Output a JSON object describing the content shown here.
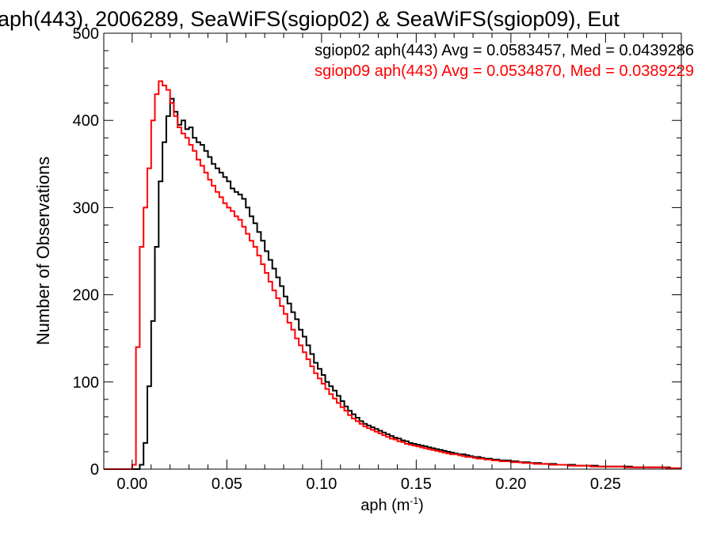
{
  "chart_data": {
    "type": "line",
    "title": "aph(443), 2006289, SeaWiFS(sgiop02) & SeaWiFS(sgiop09), Eut",
    "xlabel": "aph (m",
    "xlabel_sup": "-1",
    "xlabel_close": ")",
    "ylabel": "Number of Observations",
    "xlim": [
      -0.015,
      0.29
    ],
    "ylim": [
      0,
      500
    ],
    "grid": false,
    "step": "histogram",
    "x_ticks": [
      {
        "value": 0.0,
        "label": "0.00"
      },
      {
        "value": 0.05,
        "label": "0.05"
      },
      {
        "value": 0.1,
        "label": "0.10"
      },
      {
        "value": 0.15,
        "label": "0.15"
      },
      {
        "value": 0.2,
        "label": "0.20"
      },
      {
        "value": 0.25,
        "label": "0.25"
      }
    ],
    "y_ticks": [
      {
        "value": 0,
        "label": "0"
      },
      {
        "value": 100,
        "label": "100"
      },
      {
        "value": 200,
        "label": "200"
      },
      {
        "value": 300,
        "label": "300"
      },
      {
        "value": 400,
        "label": "400"
      },
      {
        "value": 500,
        "label": "500"
      }
    ],
    "annotations": [
      {
        "text": "sgiop02 aph(443) Avg = 0.0583457, Med = 0.0439286",
        "color": "#000000"
      },
      {
        "text": "sgiop09 aph(443) Avg = 0.0534870, Med = 0.0389229",
        "color": "#ff0000"
      }
    ],
    "series": [
      {
        "color": "#000000",
        "points": [
          [
            -0.015,
            0
          ],
          [
            0.0,
            0
          ],
          [
            0.002,
            0
          ],
          [
            0.004,
            5
          ],
          [
            0.006,
            30
          ],
          [
            0.008,
            95
          ],
          [
            0.01,
            170
          ],
          [
            0.012,
            255
          ],
          [
            0.014,
            330
          ],
          [
            0.016,
            375
          ],
          [
            0.018,
            405
          ],
          [
            0.02,
            425
          ],
          [
            0.022,
            410
          ],
          [
            0.024,
            395
          ],
          [
            0.026,
            400
          ],
          [
            0.028,
            390
          ],
          [
            0.03,
            392
          ],
          [
            0.032,
            380
          ],
          [
            0.034,
            375
          ],
          [
            0.036,
            372
          ],
          [
            0.038,
            365
          ],
          [
            0.04,
            358
          ],
          [
            0.042,
            350
          ],
          [
            0.044,
            345
          ],
          [
            0.046,
            340
          ],
          [
            0.048,
            335
          ],
          [
            0.05,
            330
          ],
          [
            0.052,
            322
          ],
          [
            0.054,
            318
          ],
          [
            0.056,
            315
          ],
          [
            0.058,
            310
          ],
          [
            0.06,
            300
          ],
          [
            0.062,
            290
          ],
          [
            0.064,
            282
          ],
          [
            0.066,
            272
          ],
          [
            0.068,
            262
          ],
          [
            0.07,
            250
          ],
          [
            0.072,
            240
          ],
          [
            0.074,
            230
          ],
          [
            0.076,
            220
          ],
          [
            0.078,
            210
          ],
          [
            0.08,
            198
          ],
          [
            0.082,
            190
          ],
          [
            0.084,
            180
          ],
          [
            0.086,
            172
          ],
          [
            0.088,
            160
          ],
          [
            0.09,
            152
          ],
          [
            0.092,
            142
          ],
          [
            0.094,
            132
          ],
          [
            0.096,
            122
          ],
          [
            0.098,
            115
          ],
          [
            0.1,
            108
          ],
          [
            0.102,
            100
          ],
          [
            0.104,
            95
          ],
          [
            0.106,
            90
          ],
          [
            0.108,
            84
          ],
          [
            0.11,
            78
          ],
          [
            0.112,
            72
          ],
          [
            0.114,
            67
          ],
          [
            0.116,
            63
          ],
          [
            0.118,
            59
          ],
          [
            0.12,
            55
          ],
          [
            0.122,
            52
          ],
          [
            0.124,
            50
          ],
          [
            0.126,
            48
          ],
          [
            0.128,
            46
          ],
          [
            0.13,
            44
          ],
          [
            0.132,
            42
          ],
          [
            0.134,
            40
          ],
          [
            0.136,
            38
          ],
          [
            0.138,
            36
          ],
          [
            0.14,
            35
          ],
          [
            0.142,
            33
          ],
          [
            0.144,
            32
          ],
          [
            0.146,
            30
          ],
          [
            0.148,
            29
          ],
          [
            0.15,
            28
          ],
          [
            0.152,
            27
          ],
          [
            0.154,
            26
          ],
          [
            0.156,
            25
          ],
          [
            0.158,
            24
          ],
          [
            0.16,
            23
          ],
          [
            0.162,
            22
          ],
          [
            0.164,
            21
          ],
          [
            0.166,
            20
          ],
          [
            0.168,
            19
          ],
          [
            0.17,
            18
          ],
          [
            0.172,
            17
          ],
          [
            0.174,
            17
          ],
          [
            0.176,
            16
          ],
          [
            0.178,
            15
          ],
          [
            0.18,
            14
          ],
          [
            0.182,
            14
          ],
          [
            0.184,
            13
          ],
          [
            0.186,
            12
          ],
          [
            0.188,
            12
          ],
          [
            0.19,
            11
          ],
          [
            0.192,
            11
          ],
          [
            0.194,
            10
          ],
          [
            0.196,
            10
          ],
          [
            0.198,
            10
          ],
          [
            0.2,
            9
          ],
          [
            0.202,
            9
          ],
          [
            0.204,
            8
          ],
          [
            0.206,
            8
          ],
          [
            0.208,
            8
          ],
          [
            0.21,
            7
          ],
          [
            0.212,
            7
          ],
          [
            0.214,
            7
          ],
          [
            0.216,
            6
          ],
          [
            0.218,
            6
          ],
          [
            0.22,
            6
          ],
          [
            0.222,
            6
          ],
          [
            0.224,
            5
          ],
          [
            0.226,
            5
          ],
          [
            0.228,
            5
          ],
          [
            0.23,
            5
          ],
          [
            0.232,
            5
          ],
          [
            0.234,
            4
          ],
          [
            0.236,
            4
          ],
          [
            0.238,
            4
          ],
          [
            0.24,
            4
          ],
          [
            0.242,
            4
          ],
          [
            0.244,
            4
          ],
          [
            0.246,
            3
          ],
          [
            0.248,
            3
          ],
          [
            0.25,
            3
          ],
          [
            0.252,
            3
          ],
          [
            0.254,
            3
          ],
          [
            0.256,
            3
          ],
          [
            0.258,
            3
          ],
          [
            0.26,
            3
          ],
          [
            0.262,
            3
          ],
          [
            0.264,
            2
          ],
          [
            0.266,
            2
          ],
          [
            0.268,
            2
          ],
          [
            0.27,
            2
          ],
          [
            0.272,
            2
          ],
          [
            0.274,
            2
          ],
          [
            0.276,
            2
          ],
          [
            0.278,
            2
          ],
          [
            0.28,
            2
          ],
          [
            0.282,
            2
          ],
          [
            0.284,
            1
          ],
          [
            0.286,
            1
          ],
          [
            0.288,
            1
          ]
        ]
      },
      {
        "color": "#ff0000",
        "points": [
          [
            -0.015,
            0
          ],
          [
            -0.002,
            0
          ],
          [
            0.0,
            5
          ],
          [
            0.002,
            140
          ],
          [
            0.004,
            255
          ],
          [
            0.006,
            300
          ],
          [
            0.008,
            345
          ],
          [
            0.01,
            400
          ],
          [
            0.012,
            430
          ],
          [
            0.014,
            445
          ],
          [
            0.016,
            440
          ],
          [
            0.018,
            435
          ],
          [
            0.02,
            420
          ],
          [
            0.022,
            405
          ],
          [
            0.024,
            392
          ],
          [
            0.026,
            385
          ],
          [
            0.028,
            380
          ],
          [
            0.03,
            372
          ],
          [
            0.032,
            365
          ],
          [
            0.034,
            355
          ],
          [
            0.036,
            348
          ],
          [
            0.038,
            340
          ],
          [
            0.04,
            332
          ],
          [
            0.042,
            325
          ],
          [
            0.044,
            318
          ],
          [
            0.046,
            312
          ],
          [
            0.048,
            305
          ],
          [
            0.05,
            300
          ],
          [
            0.052,
            296
          ],
          [
            0.054,
            290
          ],
          [
            0.056,
            286
          ],
          [
            0.058,
            278
          ],
          [
            0.06,
            270
          ],
          [
            0.062,
            262
          ],
          [
            0.064,
            255
          ],
          [
            0.066,
            245
          ],
          [
            0.068,
            235
          ],
          [
            0.07,
            225
          ],
          [
            0.072,
            215
          ],
          [
            0.074,
            205
          ],
          [
            0.076,
            196
          ],
          [
            0.078,
            187
          ],
          [
            0.08,
            178
          ],
          [
            0.082,
            168
          ],
          [
            0.084,
            160
          ],
          [
            0.086,
            150
          ],
          [
            0.088,
            142
          ],
          [
            0.09,
            134
          ],
          [
            0.092,
            126
          ],
          [
            0.094,
            118
          ],
          [
            0.096,
            110
          ],
          [
            0.098,
            104
          ],
          [
            0.1,
            98
          ],
          [
            0.102,
            92
          ],
          [
            0.104,
            86
          ],
          [
            0.106,
            81
          ],
          [
            0.108,
            76
          ],
          [
            0.11,
            71
          ],
          [
            0.112,
            67
          ],
          [
            0.114,
            62
          ],
          [
            0.116,
            58
          ],
          [
            0.118,
            55
          ],
          [
            0.12,
            52
          ],
          [
            0.122,
            49
          ],
          [
            0.124,
            47
          ],
          [
            0.126,
            45
          ],
          [
            0.128,
            43
          ],
          [
            0.13,
            41
          ],
          [
            0.132,
            39
          ],
          [
            0.134,
            37
          ],
          [
            0.136,
            35
          ],
          [
            0.138,
            34
          ],
          [
            0.14,
            32
          ],
          [
            0.142,
            31
          ],
          [
            0.144,
            29
          ],
          [
            0.146,
            28
          ],
          [
            0.148,
            27
          ],
          [
            0.15,
            26
          ],
          [
            0.152,
            25
          ],
          [
            0.154,
            24
          ],
          [
            0.156,
            23
          ],
          [
            0.158,
            22
          ],
          [
            0.16,
            21
          ],
          [
            0.162,
            20
          ],
          [
            0.164,
            19
          ],
          [
            0.166,
            18
          ],
          [
            0.168,
            17
          ],
          [
            0.17,
            17
          ],
          [
            0.172,
            16
          ],
          [
            0.174,
            15
          ],
          [
            0.176,
            14
          ],
          [
            0.178,
            14
          ],
          [
            0.18,
            13
          ],
          [
            0.182,
            12
          ],
          [
            0.184,
            12
          ],
          [
            0.186,
            11
          ],
          [
            0.188,
            11
          ],
          [
            0.19,
            10
          ],
          [
            0.192,
            10
          ],
          [
            0.194,
            9
          ],
          [
            0.196,
            9
          ],
          [
            0.198,
            9
          ],
          [
            0.2,
            8
          ],
          [
            0.202,
            8
          ],
          [
            0.204,
            8
          ],
          [
            0.206,
            7
          ],
          [
            0.208,
            7
          ],
          [
            0.21,
            7
          ],
          [
            0.212,
            6
          ],
          [
            0.214,
            6
          ],
          [
            0.216,
            6
          ],
          [
            0.218,
            6
          ],
          [
            0.22,
            5
          ],
          [
            0.222,
            5
          ],
          [
            0.224,
            5
          ],
          [
            0.226,
            5
          ],
          [
            0.228,
            5
          ],
          [
            0.23,
            4
          ],
          [
            0.232,
            4
          ],
          [
            0.234,
            4
          ],
          [
            0.236,
            4
          ],
          [
            0.238,
            4
          ],
          [
            0.24,
            4
          ],
          [
            0.242,
            3
          ],
          [
            0.244,
            3
          ],
          [
            0.246,
            3
          ],
          [
            0.248,
            3
          ],
          [
            0.25,
            3
          ],
          [
            0.252,
            3
          ],
          [
            0.254,
            3
          ],
          [
            0.256,
            3
          ],
          [
            0.258,
            3
          ],
          [
            0.26,
            2
          ],
          [
            0.262,
            2
          ],
          [
            0.264,
            2
          ],
          [
            0.266,
            2
          ],
          [
            0.268,
            2
          ],
          [
            0.27,
            2
          ],
          [
            0.272,
            2
          ],
          [
            0.274,
            2
          ],
          [
            0.276,
            2
          ],
          [
            0.278,
            2
          ],
          [
            0.28,
            2
          ],
          [
            0.282,
            1
          ],
          [
            0.284,
            1
          ],
          [
            0.286,
            1
          ],
          [
            0.288,
            1
          ]
        ]
      }
    ]
  }
}
